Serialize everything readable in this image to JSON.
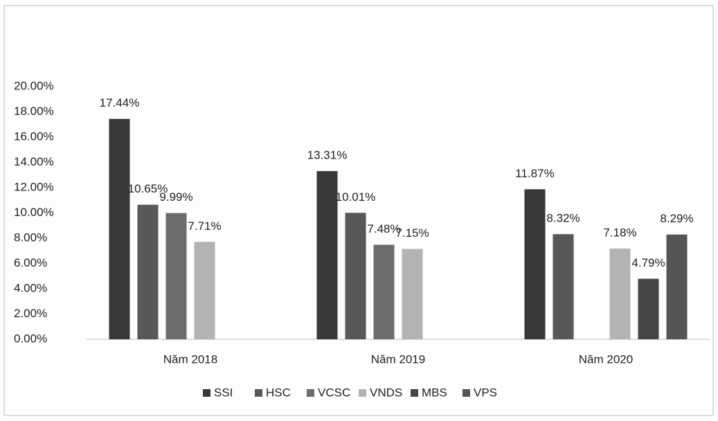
{
  "chart_data": {
    "type": "bar",
    "categories": [
      "Năm 2018",
      "Năm 2019",
      "Năm 2020"
    ],
    "series": [
      {
        "name": "SSI",
        "color": "#383838",
        "values": [
          17.44,
          13.31,
          11.87
        ],
        "value_labels": [
          "17.44%",
          "13.31%",
          "11.87%"
        ]
      },
      {
        "name": "HSC",
        "color": "#585858",
        "values": [
          10.65,
          10.01,
          8.32
        ],
        "value_labels": [
          "10.65%",
          "10.01%",
          "8.32%"
        ]
      },
      {
        "name": "VCSC",
        "color": "#6c6c6c",
        "values": [
          9.99,
          7.48,
          null
        ],
        "value_labels": [
          "9.99%",
          "7.48%",
          null
        ]
      },
      {
        "name": "VNDS",
        "color": "#b3b3b3",
        "values": [
          7.71,
          7.15,
          7.18
        ],
        "value_labels": [
          "7.71%",
          "7.15%",
          "7.18%"
        ]
      },
      {
        "name": "MBS",
        "color": "#464646",
        "values": [
          null,
          null,
          4.79
        ],
        "value_labels": [
          null,
          null,
          "4.79%"
        ]
      },
      {
        "name": "VPS",
        "color": "#555555",
        "values": [
          null,
          null,
          8.29
        ],
        "value_labels": [
          null,
          null,
          "8.29%"
        ]
      }
    ],
    "ylim": [
      0,
      20
    ],
    "yticks": [
      {
        "value": 0,
        "label": "0.00%"
      },
      {
        "value": 2,
        "label": "2.00%"
      },
      {
        "value": 4,
        "label": "4.00%"
      },
      {
        "value": 6,
        "label": "6.00%"
      },
      {
        "value": 8,
        "label": "8.00%"
      },
      {
        "value": 10,
        "label": "10.00%"
      },
      {
        "value": 12,
        "label": "12.00%"
      },
      {
        "value": 14,
        "label": "14.00%"
      },
      {
        "value": 16,
        "label": "16.00%"
      },
      {
        "value": 18,
        "label": "18.00%"
      },
      {
        "value": 20,
        "label": "20.00%"
      }
    ],
    "grid": false,
    "legend": "bottom"
  }
}
